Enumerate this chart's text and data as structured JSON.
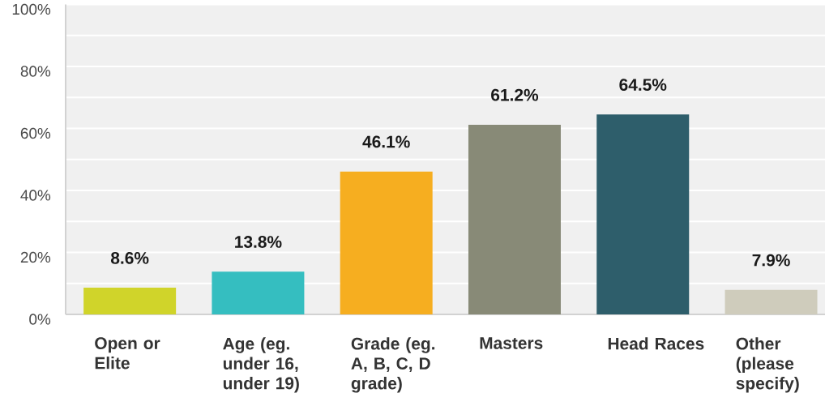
{
  "chart_data": {
    "type": "bar",
    "categories": [
      "Open or Elite",
      "Age (eg. under 16, under 19)",
      "Grade (eg. A, B, C, D grade)",
      "Masters",
      "Head Races",
      "Other (please specify)"
    ],
    "values": [
      8.6,
      13.8,
      46.1,
      61.2,
      64.5,
      7.9
    ],
    "colors": [
      "#d0d42a",
      "#35bec0",
      "#f6ae20",
      "#888a77",
      "#2e5e6b",
      "#cfccbc"
    ],
    "value_labels": [
      "8.6%",
      "13.8%",
      "46.1%",
      "61.2%",
      "64.5%",
      "7.9%"
    ],
    "ylim": [
      0,
      100
    ],
    "yticks": [
      {
        "value": 0,
        "label": "0%"
      },
      {
        "value": 10,
        "label": null
      },
      {
        "value": 20,
        "label": "20%"
      },
      {
        "value": 30,
        "label": null
      },
      {
        "value": 40,
        "label": "40%"
      },
      {
        "value": 50,
        "label": null
      },
      {
        "value": 60,
        "label": "60%"
      },
      {
        "value": 70,
        "label": null
      },
      {
        "value": 80,
        "label": "80%"
      },
      {
        "value": 90,
        "label": null
      },
      {
        "value": 100,
        "label": "100%"
      }
    ],
    "grid": "y"
  }
}
